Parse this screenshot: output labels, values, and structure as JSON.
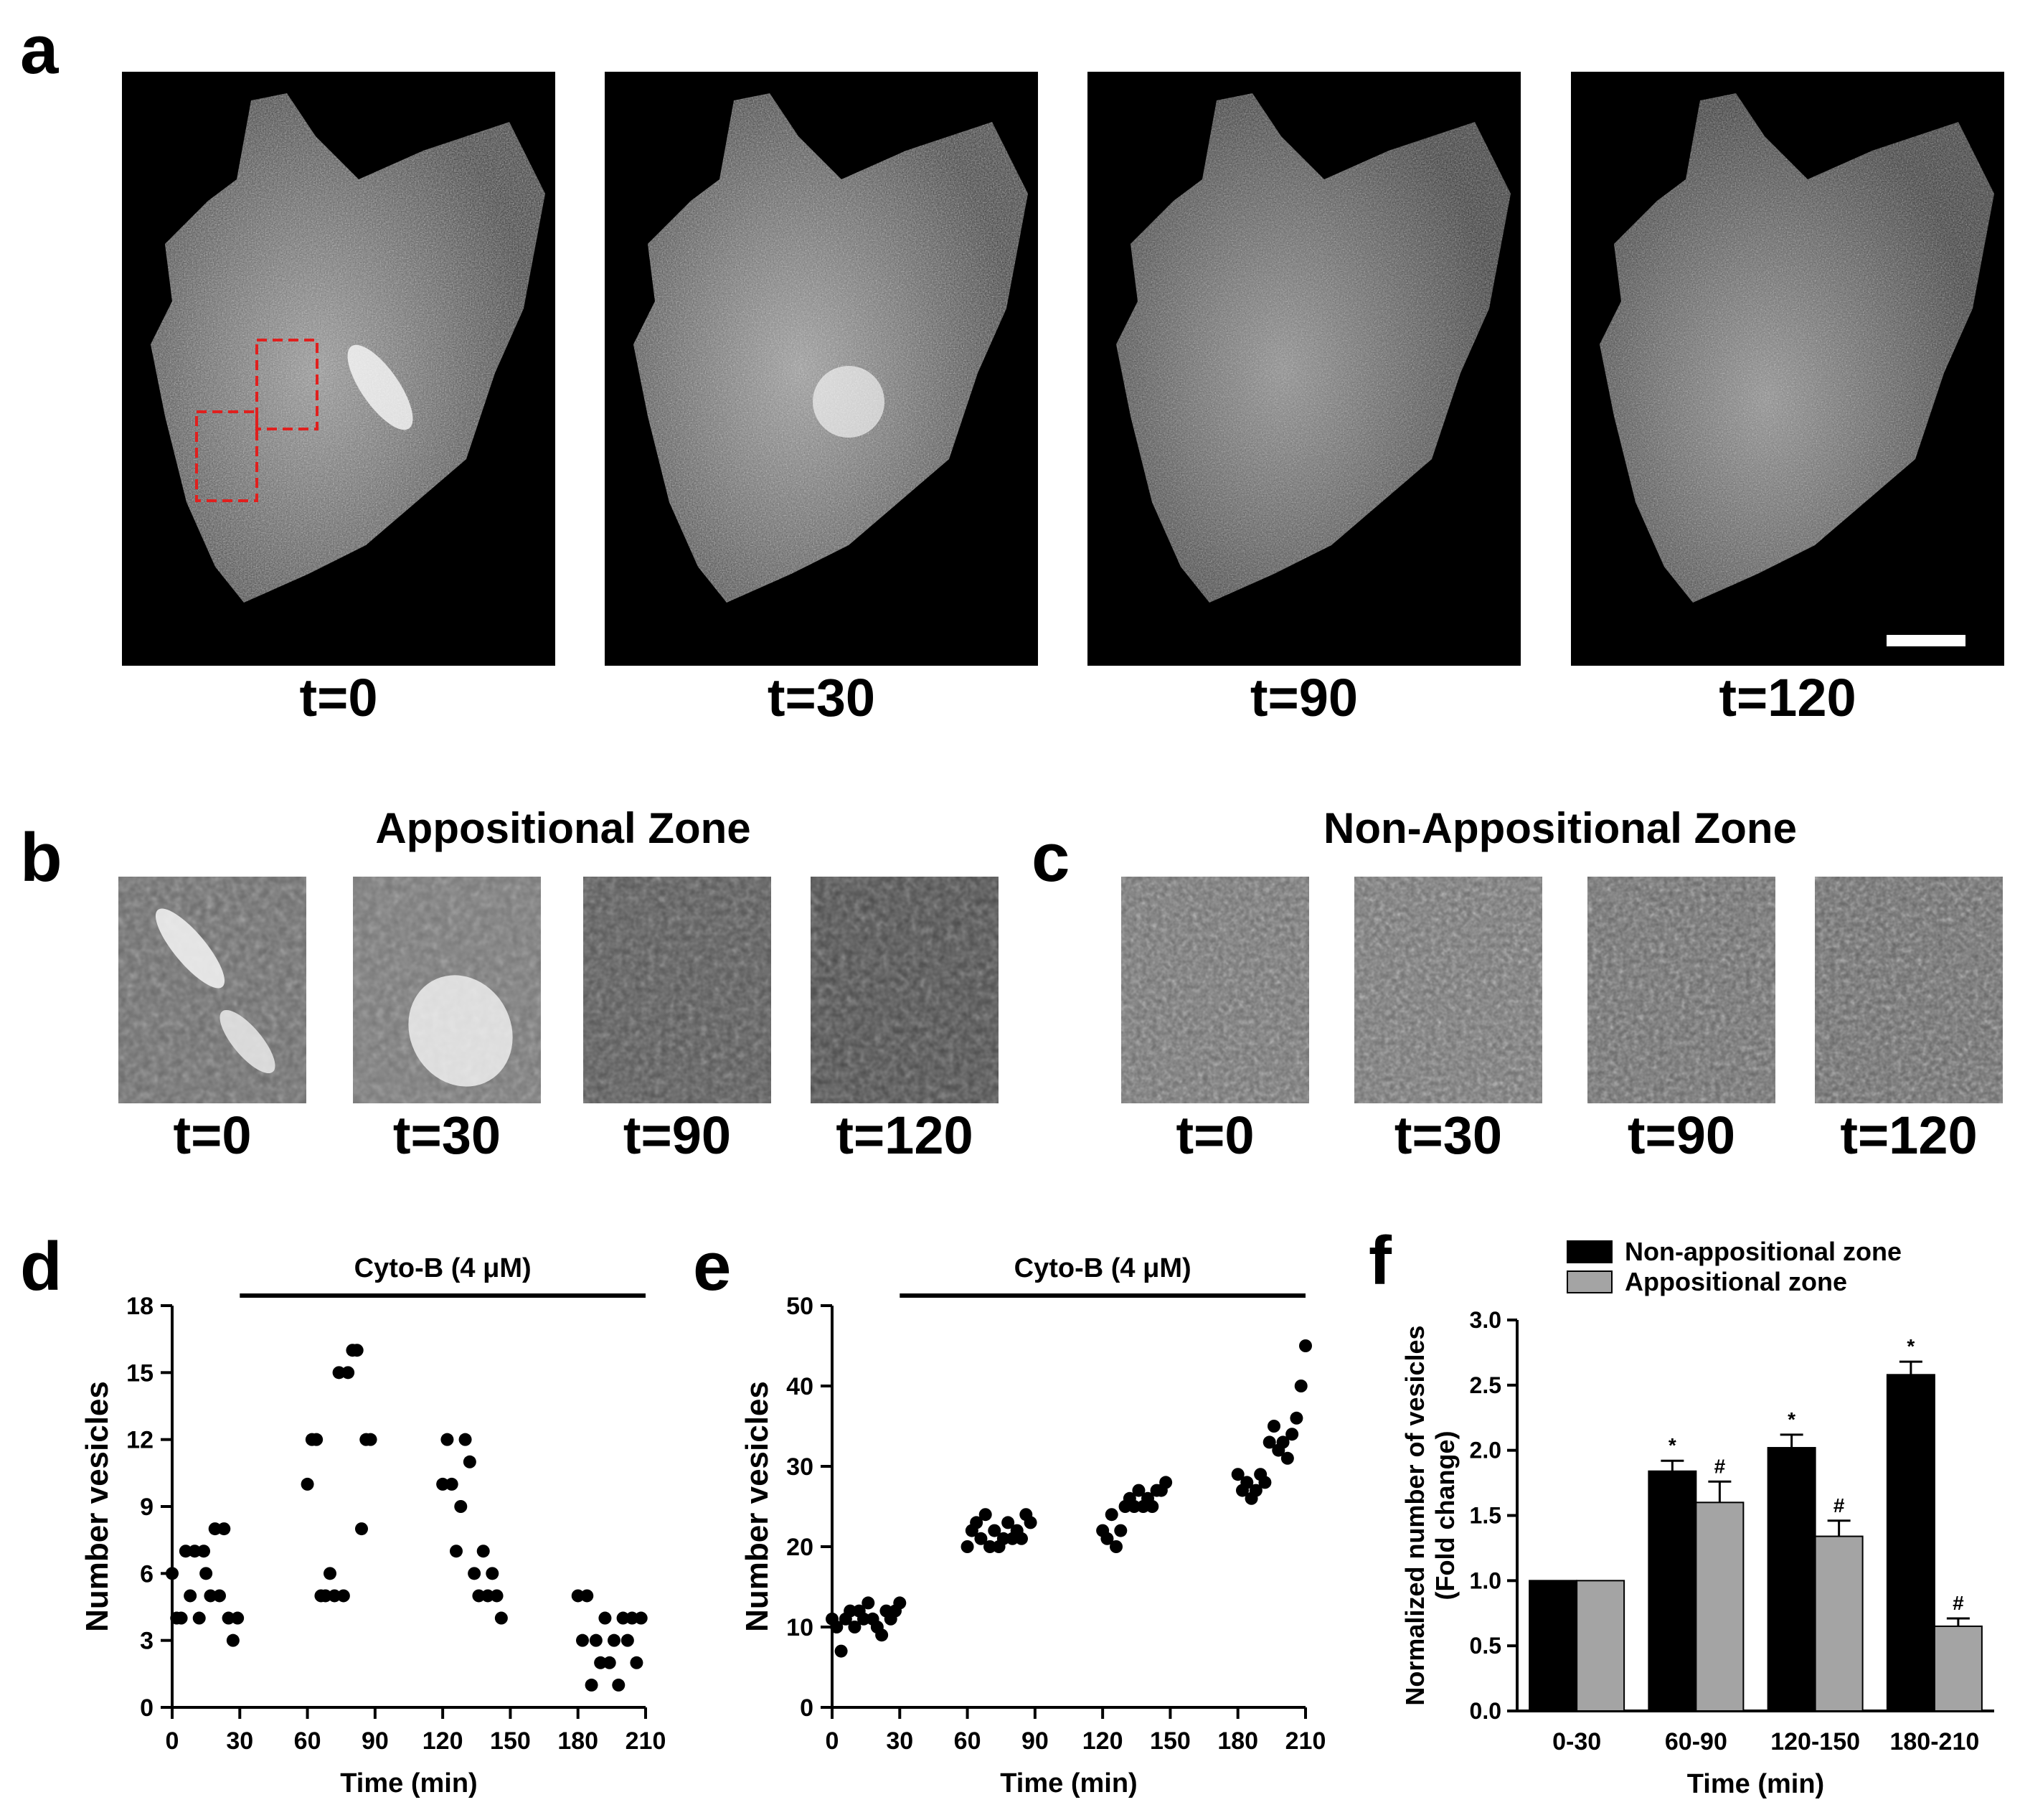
{
  "panels": {
    "a": {
      "label": "a",
      "images": [
        {
          "name": "t0",
          "label": "t=0"
        },
        {
          "name": "t30",
          "label": "t=30"
        },
        {
          "name": "t90",
          "label": "t=90"
        },
        {
          "name": "t120",
          "label": "t=120"
        }
      ],
      "roi_color": "#e0201e",
      "scale_bar_color": "#ffffff"
    },
    "b": {
      "label": "b",
      "title": "Appositional Zone",
      "images": [
        {
          "name": "t0",
          "label": "t=0"
        },
        {
          "name": "t30",
          "label": "t=30"
        },
        {
          "name": "t90",
          "label": "t=90"
        },
        {
          "name": "t120",
          "label": "t=120"
        }
      ]
    },
    "c": {
      "label": "c",
      "title": "Non-Appositional Zone",
      "images": [
        {
          "name": "t0",
          "label": "t=0"
        },
        {
          "name": "t30",
          "label": "t=30"
        },
        {
          "name": "t90",
          "label": "t=90"
        },
        {
          "name": "t120",
          "label": "t=120"
        }
      ]
    },
    "d": {
      "label": "d"
    },
    "e": {
      "label": "e"
    },
    "f": {
      "label": "f"
    }
  },
  "chart_data": [
    {
      "id": "d",
      "type": "scatter",
      "xlabel": "Time (min)",
      "ylabel": "Number vesicles",
      "xlim": [
        0,
        210
      ],
      "ylim": [
        0,
        18
      ],
      "xticks": [
        0,
        30,
        60,
        90,
        120,
        150,
        180,
        210
      ],
      "yticks": [
        0,
        3,
        6,
        9,
        12,
        15,
        18
      ],
      "treatment": {
        "label": "Cyto-B (4 μM)",
        "start": 30,
        "end": 210
      },
      "points": [
        [
          0,
          6
        ],
        [
          2,
          4
        ],
        [
          4,
          4
        ],
        [
          6,
          7
        ],
        [
          8,
          5
        ],
        [
          10,
          7
        ],
        [
          12,
          4
        ],
        [
          14,
          7
        ],
        [
          15,
          6
        ],
        [
          17,
          5
        ],
        [
          19,
          8
        ],
        [
          21,
          5
        ],
        [
          23,
          8
        ],
        [
          25,
          4
        ],
        [
          27,
          3
        ],
        [
          29,
          4
        ],
        [
          60,
          10
        ],
        [
          62,
          12
        ],
        [
          64,
          12
        ],
        [
          66,
          5
        ],
        [
          68,
          5
        ],
        [
          70,
          6
        ],
        [
          72,
          5
        ],
        [
          74,
          15
        ],
        [
          76,
          5
        ],
        [
          78,
          15
        ],
        [
          80,
          16
        ],
        [
          82,
          16
        ],
        [
          84,
          8
        ],
        [
          86,
          12
        ],
        [
          88,
          12
        ],
        [
          120,
          10
        ],
        [
          122,
          12
        ],
        [
          124,
          10
        ],
        [
          126,
          7
        ],
        [
          128,
          9
        ],
        [
          130,
          12
        ],
        [
          132,
          11
        ],
        [
          134,
          6
        ],
        [
          136,
          5
        ],
        [
          138,
          7
        ],
        [
          140,
          5
        ],
        [
          142,
          6
        ],
        [
          144,
          5
        ],
        [
          146,
          4
        ],
        [
          180,
          5
        ],
        [
          182,
          3
        ],
        [
          184,
          5
        ],
        [
          186,
          1
        ],
        [
          188,
          3
        ],
        [
          190,
          2
        ],
        [
          192,
          4
        ],
        [
          194,
          2
        ],
        [
          196,
          3
        ],
        [
          198,
          1
        ],
        [
          200,
          4
        ],
        [
          202,
          3
        ],
        [
          204,
          4
        ],
        [
          206,
          2
        ],
        [
          208,
          4
        ]
      ]
    },
    {
      "id": "e",
      "type": "scatter",
      "xlabel": "Time (min)",
      "ylabel": "Number vesicles",
      "xlim": [
        0,
        210
      ],
      "ylim": [
        0,
        50
      ],
      "xticks": [
        0,
        30,
        60,
        90,
        120,
        150,
        180,
        210
      ],
      "yticks": [
        0,
        10,
        20,
        30,
        40,
        50
      ],
      "treatment": {
        "label": "Cyto-B (4 μM)",
        "start": 30,
        "end": 210
      },
      "points": [
        [
          0,
          11
        ],
        [
          2,
          10
        ],
        [
          4,
          7
        ],
        [
          6,
          11
        ],
        [
          8,
          12
        ],
        [
          10,
          10
        ],
        [
          12,
          12
        ],
        [
          14,
          11
        ],
        [
          16,
          13
        ],
        [
          18,
          11
        ],
        [
          20,
          10
        ],
        [
          22,
          9
        ],
        [
          24,
          12
        ],
        [
          26,
          11
        ],
        [
          28,
          12
        ],
        [
          30,
          13
        ],
        [
          60,
          20
        ],
        [
          62,
          22
        ],
        [
          64,
          23
        ],
        [
          66,
          21
        ],
        [
          68,
          24
        ],
        [
          70,
          20
        ],
        [
          72,
          22
        ],
        [
          74,
          20
        ],
        [
          76,
          21
        ],
        [
          78,
          23
        ],
        [
          80,
          21
        ],
        [
          82,
          22
        ],
        [
          84,
          21
        ],
        [
          86,
          24
        ],
        [
          88,
          23
        ],
        [
          120,
          22
        ],
        [
          122,
          21
        ],
        [
          124,
          24
        ],
        [
          126,
          20
        ],
        [
          128,
          22
        ],
        [
          130,
          25
        ],
        [
          132,
          26
        ],
        [
          134,
          25
        ],
        [
          136,
          27
        ],
        [
          138,
          25
        ],
        [
          140,
          26
        ],
        [
          142,
          25
        ],
        [
          144,
          27
        ],
        [
          146,
          27
        ],
        [
          148,
          28
        ],
        [
          180,
          29
        ],
        [
          182,
          27
        ],
        [
          184,
          28
        ],
        [
          186,
          26
        ],
        [
          188,
          27
        ],
        [
          190,
          29
        ],
        [
          192,
          28
        ],
        [
          194,
          33
        ],
        [
          196,
          35
        ],
        [
          198,
          32
        ],
        [
          200,
          33
        ],
        [
          202,
          31
        ],
        [
          204,
          34
        ],
        [
          206,
          36
        ],
        [
          208,
          40
        ],
        [
          210,
          45
        ]
      ]
    },
    {
      "id": "f",
      "type": "bar",
      "xlabel": "Time (min)",
      "ylabel_lines": [
        "Normalized number of vesicles",
        "(Fold change)"
      ],
      "ylim": [
        0,
        3.0
      ],
      "yticks": [
        "0.0",
        "0.5",
        "1.0",
        "1.5",
        "2.0",
        "2.5",
        "3.0"
      ],
      "categories": [
        "0-30",
        "60-90",
        "120-150",
        "180-210"
      ],
      "series": [
        {
          "name": "Non-appositional zone",
          "color": "#000000",
          "values": [
            1.0,
            1.84,
            2.02,
            2.58
          ],
          "errors": [
            0,
            0.08,
            0.1,
            0.1
          ],
          "annotations": [
            "",
            "*",
            "*",
            "*"
          ]
        },
        {
          "name": "Appositional zone",
          "color": "#a4a4a4",
          "values": [
            1.0,
            1.6,
            1.34,
            0.65
          ],
          "errors": [
            0,
            0.16,
            0.12,
            0.06
          ],
          "annotations": [
            "",
            "#",
            "#",
            "#"
          ]
        }
      ],
      "legend_position": "top-left"
    }
  ]
}
